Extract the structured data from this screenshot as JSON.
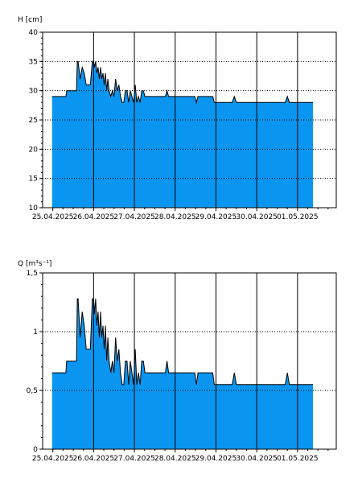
{
  "colors": {
    "fill": "#0A96F0",
    "line": "#000000",
    "grid": "#000000",
    "background": "#FFFFFF"
  },
  "chart_data": [
    {
      "type": "area",
      "ylabel": "H [cm]",
      "ylim": [
        10,
        40
      ],
      "y_ticks": [
        10,
        15,
        20,
        25,
        30,
        35,
        40
      ],
      "y_tick_labels": [
        "10",
        "15",
        "20",
        "25",
        "30",
        "35",
        "40"
      ],
      "x_range": [
        -0.25,
        6.95
      ],
      "x_ticks": [
        0,
        1,
        2,
        3,
        4,
        5,
        6
      ],
      "x_tick_labels": [
        "25.04.2025",
        "26.04.2025",
        "27.04.2025",
        "28.04.2025",
        "29.04.2025",
        "30.04.2025",
        "01.05.2025"
      ],
      "x_unit": "days from 25.04.2025 00:00",
      "grid": true,
      "series": [
        {
          "x": [
            -0.02,
            0.32,
            0.34,
            0.58,
            0.6,
            0.62,
            0.67,
            0.72,
            0.77,
            0.82,
            0.87,
            0.92,
            0.97,
            1.0,
            1.02,
            1.05,
            1.08,
            1.11,
            1.14,
            1.17,
            1.2,
            1.23,
            1.26,
            1.29,
            1.32,
            1.35,
            1.38,
            1.42,
            1.46,
            1.5,
            1.54,
            1.58,
            1.62,
            1.66,
            1.7,
            1.74,
            1.78,
            1.82,
            1.86,
            1.9,
            1.94,
            1.98,
            2.02,
            2.06,
            2.1,
            2.14,
            2.18,
            2.22,
            2.26,
            2.3,
            2.36,
            2.76,
            2.8,
            2.84,
            2.88,
            3.0,
            3.48,
            3.52,
            3.56,
            3.6,
            3.92,
            3.96,
            4.4,
            4.45,
            4.5,
            5.0,
            5.7,
            5.75,
            5.8,
            6.0,
            6.38
          ],
          "y": [
            29,
            29,
            30,
            30,
            35,
            35,
            32,
            34,
            33,
            31,
            31,
            31,
            35,
            35,
            34,
            35,
            33,
            34,
            32,
            34,
            32,
            33,
            31,
            33,
            30,
            32,
            30,
            29,
            30,
            29,
            32,
            30,
            31,
            29,
            28,
            28,
            30,
            30,
            28,
            30,
            29,
            28,
            31,
            28,
            29,
            28,
            30,
            30,
            29,
            29,
            29,
            29,
            30,
            29,
            29,
            29,
            29,
            28,
            29,
            29,
            29,
            28,
            28,
            29,
            28,
            28,
            28,
            29,
            28,
            28,
            28
          ]
        }
      ]
    },
    {
      "type": "area",
      "ylabel": "Q [m³s⁻¹]",
      "ylim": [
        0,
        1.5
      ],
      "y_ticks": [
        0,
        0.5,
        1,
        1.5
      ],
      "y_tick_labels": [
        "0",
        "0,5",
        "1",
        "1,5"
      ],
      "x_range": [
        -0.25,
        6.95
      ],
      "x_ticks": [
        0,
        1,
        2,
        3,
        4,
        5,
        6
      ],
      "x_tick_labels": [
        "25.04.2025",
        "26.04.2025",
        "27.04.2025",
        "28.04.2025",
        "29.04.2025",
        "30.04.2025",
        "01.05.2025"
      ],
      "x_unit": "days from 25.04.2025 00:00",
      "grid": true,
      "series": [
        {
          "x": [
            -0.02,
            0.32,
            0.34,
            0.58,
            0.6,
            0.62,
            0.67,
            0.72,
            0.77,
            0.82,
            0.87,
            0.92,
            0.97,
            1.0,
            1.02,
            1.05,
            1.08,
            1.11,
            1.14,
            1.17,
            1.2,
            1.23,
            1.26,
            1.29,
            1.32,
            1.35,
            1.38,
            1.42,
            1.46,
            1.5,
            1.54,
            1.58,
            1.62,
            1.66,
            1.7,
            1.74,
            1.78,
            1.82,
            1.86,
            1.9,
            1.94,
            1.98,
            2.02,
            2.06,
            2.1,
            2.14,
            2.18,
            2.22,
            2.26,
            2.3,
            2.36,
            2.76,
            2.8,
            2.84,
            2.88,
            3.0,
            3.48,
            3.52,
            3.56,
            3.6,
            3.92,
            3.96,
            4.4,
            4.45,
            4.5,
            5.0,
            5.7,
            5.75,
            5.8,
            6.0,
            6.38
          ],
          "y": [
            0.65,
            0.65,
            0.75,
            0.75,
            1.28,
            1.28,
            0.95,
            1.17,
            1.05,
            0.85,
            0.85,
            0.85,
            1.28,
            1.28,
            1.15,
            1.28,
            1.05,
            1.17,
            0.95,
            1.17,
            0.95,
            1.05,
            0.85,
            1.05,
            0.75,
            0.95,
            0.75,
            0.65,
            0.75,
            0.65,
            0.95,
            0.75,
            0.85,
            0.65,
            0.55,
            0.55,
            0.75,
            0.75,
            0.55,
            0.75,
            0.65,
            0.55,
            0.85,
            0.55,
            0.65,
            0.55,
            0.75,
            0.75,
            0.65,
            0.65,
            0.65,
            0.65,
            0.75,
            0.65,
            0.65,
            0.65,
            0.65,
            0.55,
            0.65,
            0.65,
            0.65,
            0.55,
            0.55,
            0.65,
            0.55,
            0.55,
            0.55,
            0.65,
            0.55,
            0.55,
            0.55
          ]
        }
      ]
    }
  ]
}
